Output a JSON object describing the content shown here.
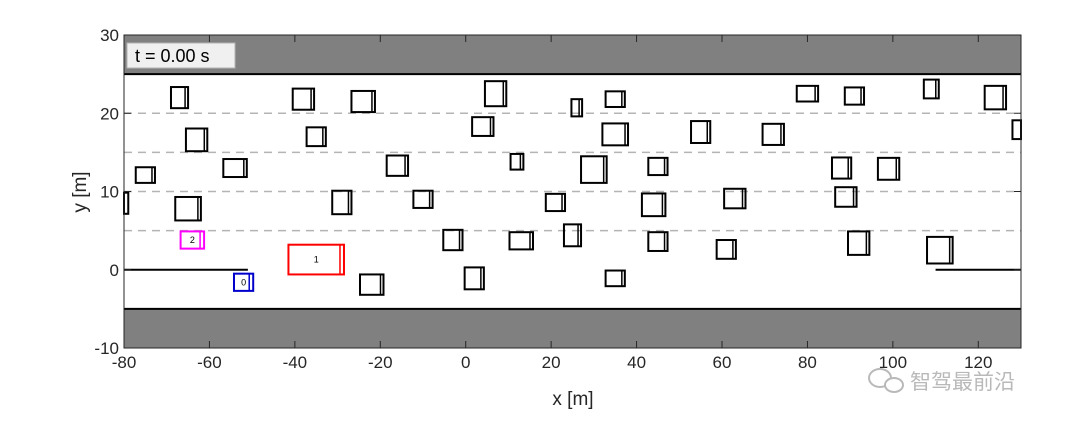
{
  "chart_data": {
    "type": "scatter",
    "title": "",
    "xlabel": "x [m]",
    "ylabel": "y [m]",
    "xlim": [
      -80,
      130
    ],
    "ylim": [
      -10,
      30
    ],
    "xticks": [
      -80,
      -60,
      -40,
      -20,
      0,
      20,
      40,
      60,
      80,
      100,
      120
    ],
    "yticks": [
      -10,
      0,
      10,
      20,
      30
    ],
    "time_label": "t = 0.00 s",
    "road": {
      "shoulder_color": "#808080",
      "lower_shoulder": [
        -10,
        -5
      ],
      "upper_shoulder": [
        25,
        30
      ],
      "solid_lines_y": [
        -5,
        25
      ],
      "dashed_lines_y": [
        5,
        10,
        15,
        20
      ],
      "merge_lane_lines": [
        {
          "y": 0,
          "x": [
            -80,
            -51
          ]
        },
        {
          "y": 0,
          "x": [
            110,
            130
          ]
        }
      ]
    },
    "vehicles": [
      {
        "id": "1",
        "x": -35,
        "y": 1.3,
        "length": 13,
        "width": 3.8,
        "color": "#ff0000"
      },
      {
        "id": "2",
        "x": -64,
        "y": 3.8,
        "length": 5.5,
        "width": 2.2,
        "color": "#ff00ff"
      },
      {
        "id": "0",
        "x": -52,
        "y": -1.6,
        "length": 4.5,
        "width": 2.2,
        "color": "#0000cc"
      }
    ],
    "obstacles": [
      {
        "x": -67,
        "y": 22,
        "w": 4,
        "h": 2.7
      },
      {
        "x": -38,
        "y": 21.8,
        "w": 5,
        "h": 2.7
      },
      {
        "x": -24,
        "y": 21.5,
        "w": 5.5,
        "h": 2.7
      },
      {
        "x": 7,
        "y": 22.5,
        "w": 5,
        "h": 3.2
      },
      {
        "x": 26,
        "y": 20.7,
        "w": 2.5,
        "h": 2.2
      },
      {
        "x": 35,
        "y": 21.8,
        "w": 4.5,
        "h": 2
      },
      {
        "x": 80,
        "y": 22.5,
        "w": 5,
        "h": 2
      },
      {
        "x": 91,
        "y": 22.2,
        "w": 4.5,
        "h": 2.2
      },
      {
        "x": 109,
        "y": 23.1,
        "w": 3.5,
        "h": 2.4
      },
      {
        "x": 124,
        "y": 22,
        "w": 5,
        "h": 3
      },
      {
        "x": 129.5,
        "y": 17.9,
        "w": 3,
        "h": 2.4
      },
      {
        "x": -63,
        "y": 16.6,
        "w": 5,
        "h": 2.9
      },
      {
        "x": -35,
        "y": 17,
        "w": 4.5,
        "h": 2.4
      },
      {
        "x": 4,
        "y": 18.3,
        "w": 5,
        "h": 2.4
      },
      {
        "x": 35,
        "y": 17.3,
        "w": 6,
        "h": 2.8
      },
      {
        "x": 55,
        "y": 17.6,
        "w": 4.5,
        "h": 2.8
      },
      {
        "x": 72,
        "y": 17.3,
        "w": 5,
        "h": 2.7
      },
      {
        "x": -75,
        "y": 12.1,
        "w": 4.5,
        "h": 2
      },
      {
        "x": -54,
        "y": 13,
        "w": 5.5,
        "h": 2.3
      },
      {
        "x": -16,
        "y": 13.3,
        "w": 5,
        "h": 2.6
      },
      {
        "x": 12,
        "y": 13.8,
        "w": 3,
        "h": 2
      },
      {
        "x": 30,
        "y": 12.8,
        "w": 6,
        "h": 3.4
      },
      {
        "x": 45,
        "y": 13.2,
        "w": 4.5,
        "h": 2.2
      },
      {
        "x": 88,
        "y": 13,
        "w": 4.5,
        "h": 2.7
      },
      {
        "x": 99,
        "y": 12.9,
        "w": 5,
        "h": 2.8
      },
      {
        "x": -80,
        "y": 8.5,
        "w": 2,
        "h": 2.7
      },
      {
        "x": -65,
        "y": 7.8,
        "w": 6,
        "h": 3
      },
      {
        "x": -29,
        "y": 8.6,
        "w": 4.5,
        "h": 3
      },
      {
        "x": -10,
        "y": 9,
        "w": 4.5,
        "h": 2.2
      },
      {
        "x": 21,
        "y": 8.6,
        "w": 4.5,
        "h": 2.2
      },
      {
        "x": 44,
        "y": 8.3,
        "w": 5.5,
        "h": 2.9
      },
      {
        "x": 63,
        "y": 9.1,
        "w": 5,
        "h": 2.5
      },
      {
        "x": 89,
        "y": 9.3,
        "w": 5,
        "h": 2.5
      },
      {
        "x": -3,
        "y": 3.8,
        "w": 4.5,
        "h": 2.6
      },
      {
        "x": 13,
        "y": 3.7,
        "w": 5.5,
        "h": 2.2
      },
      {
        "x": 25,
        "y": 4.4,
        "w": 4,
        "h": 2.8
      },
      {
        "x": 45,
        "y": 3.6,
        "w": 4.5,
        "h": 2.4
      },
      {
        "x": 61,
        "y": 2.6,
        "w": 4.5,
        "h": 2.4
      },
      {
        "x": 92,
        "y": 3.4,
        "w": 5,
        "h": 3
      },
      {
        "x": 111,
        "y": 2.5,
        "w": 6,
        "h": 3.4
      },
      {
        "x": -22,
        "y": -1.9,
        "w": 5.5,
        "h": 2.6
      },
      {
        "x": 2,
        "y": -1.1,
        "w": 4.5,
        "h": 2.8
      },
      {
        "x": 35,
        "y": -1.1,
        "w": 4.5,
        "h": 2
      }
    ]
  },
  "watermark": {
    "text": "智驾最前沿"
  }
}
